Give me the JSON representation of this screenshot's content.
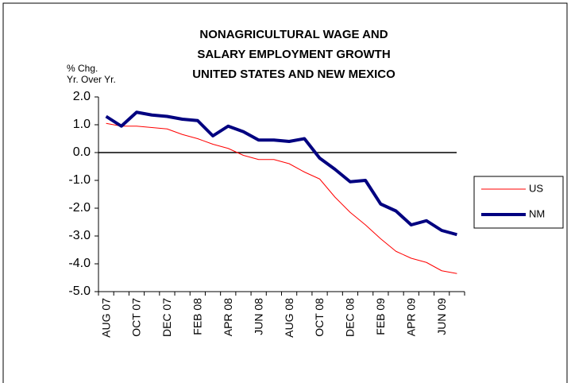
{
  "chart_data": {
    "type": "line",
    "title": [
      "NONAGRICULTURAL WAGE AND",
      "SALARY EMPLOYMENT GROWTH",
      "UNITED STATES AND NEW MEXICO"
    ],
    "y_label": [
      "% Chg.",
      "Yr. Over Yr."
    ],
    "categories": [
      "AUG 07",
      null,
      "OCT 07",
      null,
      "DEC 07",
      null,
      "FEB 08",
      null,
      "APR 08",
      null,
      "JUN 08",
      null,
      "AUG 08",
      null,
      "OCT 08",
      null,
      "DEC 08",
      null,
      "FEB 09",
      null,
      "APR 09",
      null,
      "JUN 09",
      null
    ],
    "series": [
      {
        "name": "US",
        "color": "#ff0000",
        "values": [
          1.05,
          0.95,
          0.95,
          0.9,
          0.85,
          0.65,
          0.5,
          0.3,
          0.15,
          -0.1,
          -0.25,
          -0.25,
          -0.4,
          -0.7,
          -0.95,
          -1.6,
          -2.15,
          -2.6,
          -3.1,
          -3.55,
          -3.8,
          -3.95,
          -4.25,
          -4.35
        ]
      },
      {
        "name": "NM",
        "color": "#000080",
        "values": [
          1.3,
          0.95,
          1.45,
          1.35,
          1.3,
          1.2,
          1.15,
          0.6,
          0.95,
          0.75,
          0.45,
          0.45,
          0.4,
          0.5,
          -0.2,
          -0.6,
          -1.05,
          -1.0,
          -1.85,
          -2.1,
          -2.6,
          -2.45,
          -2.8,
          -2.95
        ]
      }
    ],
    "ylim": [
      -5,
      2
    ],
    "yticks": [
      {
        "value": -5,
        "label": "-5.0"
      },
      {
        "value": -4,
        "label": "-4.0"
      },
      {
        "value": -3,
        "label": "-3.0"
      },
      {
        "value": -2,
        "label": "-2.0"
      },
      {
        "value": -1,
        "label": "-1.0"
      },
      {
        "value": 0,
        "label": "0.0"
      },
      {
        "value": 1,
        "label": "1.0"
      },
      {
        "value": 2,
        "label": "2.0"
      }
    ],
    "legend": "right"
  }
}
